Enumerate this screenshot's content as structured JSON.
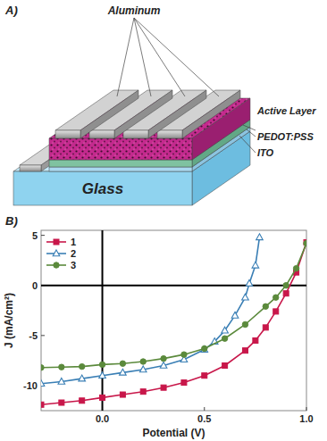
{
  "diagram": {
    "label": "A)",
    "layers": {
      "aluminum": "Aluminum",
      "active": "Active Layer",
      "pedot": "PEDOT:PSS",
      "ito": "ITO",
      "glass": "Glass"
    }
  },
  "chart_data": {
    "type": "line",
    "panel_label": "B)",
    "x_label": "Potential (V)",
    "y_label": "J (mA/cm²)",
    "xlim": [
      -0.3,
      1.0
    ],
    "ylim": [
      -12.5,
      5.5
    ],
    "xticks": [
      {
        "value": 0,
        "label": "0.0"
      },
      {
        "value": 0.5,
        "label": "0.5"
      },
      {
        "value": 1.0,
        "label": "1.0"
      }
    ],
    "yticks": [
      -10,
      -5,
      0,
      5
    ],
    "grid": false,
    "legend": "top-left",
    "series": [
      {
        "name": "1",
        "color": "#c8174a",
        "marker": "square",
        "line_style": "solid",
        "x": [
          -0.3,
          -0.2,
          -0.1,
          0,
          0.1,
          0.2,
          0.3,
          0.4,
          0.5,
          0.6,
          0.7,
          0.75,
          0.8,
          0.85,
          0.9,
          0.95,
          1.0
        ],
        "values": [
          -11.9,
          -11.7,
          -11.5,
          -11.2,
          -10.9,
          -10.6,
          -10.2,
          -9.7,
          -9.0,
          -8.0,
          -6.5,
          -5.5,
          -4.2,
          -2.6,
          -0.8,
          1.3,
          4.3
        ]
      },
      {
        "name": "2",
        "color": "#3a7fb5",
        "marker": "triangle-open",
        "line_style": "solid",
        "x": [
          -0.3,
          -0.2,
          -0.1,
          0,
          0.1,
          0.2,
          0.3,
          0.4,
          0.5,
          0.55,
          0.6,
          0.65,
          0.7,
          0.72,
          0.75,
          0.77
        ],
        "values": [
          -9.8,
          -9.6,
          -9.3,
          -9.0,
          -8.7,
          -8.4,
          -8.0,
          -7.4,
          -6.4,
          -5.6,
          -4.5,
          -3.0,
          -1.2,
          0.2,
          2.0,
          4.8
        ]
      },
      {
        "name": "3",
        "color": "#5b8a3c",
        "marker": "circle",
        "line_style": "solid",
        "x": [
          -0.3,
          -0.2,
          -0.1,
          0,
          0.1,
          0.2,
          0.3,
          0.4,
          0.5,
          0.6,
          0.7,
          0.8,
          0.85,
          0.9,
          0.95,
          1.0
        ],
        "values": [
          -8.2,
          -8.15,
          -8.1,
          -7.9,
          -7.8,
          -7.6,
          -7.3,
          -6.9,
          -6.3,
          -5.3,
          -3.9,
          -2.1,
          -1.2,
          0.0,
          1.7,
          4.2
        ]
      }
    ]
  }
}
